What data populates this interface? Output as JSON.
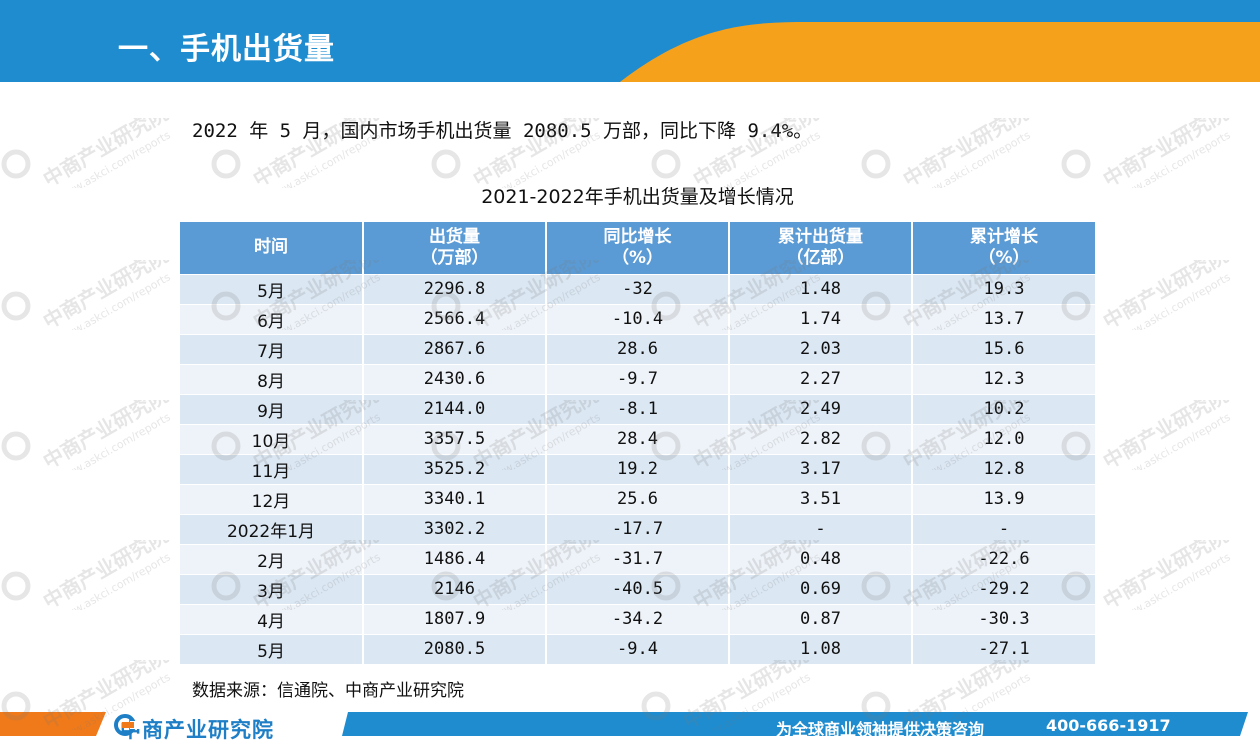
{
  "header": {
    "title": "一、手机出货量",
    "colors": {
      "primary": "#1f8ccf",
      "accent": "#f5a11c"
    }
  },
  "summary": "2022 年 5 月，国内市场手机出货量 2080.5 万部，同比下降 9.4%。",
  "table": {
    "title": "2021-2022年手机出货量及增长情况",
    "columns": [
      {
        "line1": "时间",
        "line2": ""
      },
      {
        "line1": "出货量",
        "line2": "（万部）"
      },
      {
        "line1": "同比增长",
        "line2": "（%）"
      },
      {
        "line1": "累计出货量",
        "line2": "（亿部）"
      },
      {
        "line1": "累计增长",
        "line2": "（%）"
      }
    ],
    "rows": [
      [
        "5月",
        "2296.8",
        "-32",
        "1.48",
        "19.3"
      ],
      [
        "6月",
        "2566.4",
        "-10.4",
        "1.74",
        "13.7"
      ],
      [
        "7月",
        "2867.6",
        "28.6",
        "2.03",
        "15.6"
      ],
      [
        "8月",
        "2430.6",
        "-9.7",
        "2.27",
        "12.3"
      ],
      [
        "9月",
        "2144.0",
        "-8.1",
        "2.49",
        "10.2"
      ],
      [
        "10月",
        "3357.5",
        "28.4",
        "2.82",
        "12.0"
      ],
      [
        "11月",
        "3525.2",
        "19.2",
        "3.17",
        "12.8"
      ],
      [
        "12月",
        "3340.1",
        "25.6",
        "3.51",
        "13.9"
      ],
      [
        "2022年1月",
        "3302.2",
        "-17.7",
        "-",
        "-"
      ],
      [
        "2月",
        "1486.4",
        "-31.7",
        "0.48",
        "-22.6"
      ],
      [
        "3月",
        "2146",
        "-40.5",
        "0.69",
        "-29.2"
      ],
      [
        "4月",
        "1807.9",
        "-34.2",
        "0.87",
        "-30.3"
      ],
      [
        "5月",
        "2080.5",
        "-9.4",
        "1.08",
        "-27.1"
      ]
    ]
  },
  "source": "数据来源：信通院、中商产业研究院",
  "footer": {
    "logo_text": "中商产业研究院",
    "slogan": "为全球商业领袖提供决策咨询",
    "phone": "400-666-1917"
  },
  "watermark": {
    "name": "中商产业研究院",
    "url": "www.askci.com/reports"
  }
}
